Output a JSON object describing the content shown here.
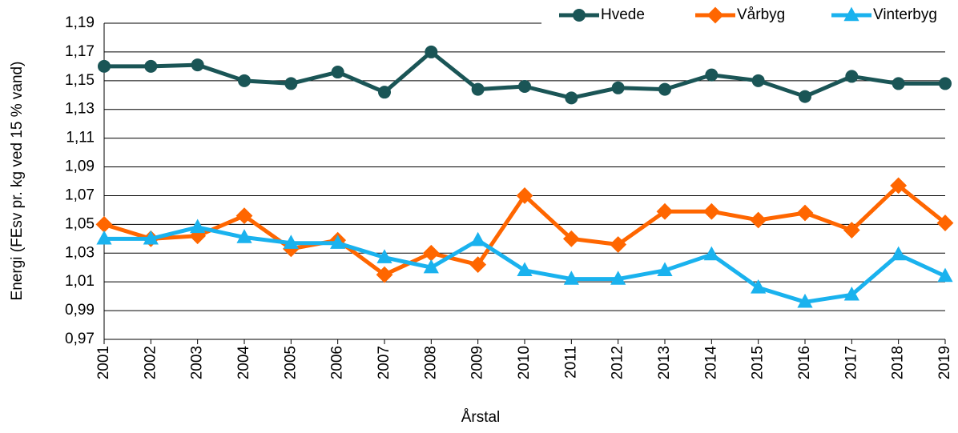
{
  "chart_data": {
    "type": "line",
    "y_label": "Energi (FEsv pr. kg ved 15 % vand)",
    "x_label": "Årstal",
    "categories": [
      "2001",
      "2002",
      "2003",
      "2004",
      "2005",
      "2006",
      "2007",
      "2008",
      "2009",
      "2010",
      "2011",
      "2012",
      "2013",
      "2014",
      "2015",
      "2016",
      "2017",
      "2018",
      "2019"
    ],
    "series": [
      {
        "name": "Hvede",
        "color": "#1a5556",
        "marker": "circle",
        "values": [
          1.16,
          1.16,
          1.161,
          1.15,
          1.148,
          1.156,
          1.142,
          1.17,
          1.144,
          1.146,
          1.138,
          1.145,
          1.144,
          1.154,
          1.15,
          1.139,
          1.153,
          1.148,
          1.148
        ]
      },
      {
        "name": "Vårbyg",
        "color": "#ff6600",
        "marker": "diamond",
        "values": [
          1.05,
          1.04,
          1.042,
          1.056,
          1.033,
          1.039,
          1.015,
          1.03,
          1.022,
          1.07,
          1.04,
          1.036,
          1.059,
          1.059,
          1.053,
          1.058,
          1.046,
          1.077,
          1.051
        ]
      },
      {
        "name": "Vinterbyg",
        "color": "#1ab2ee",
        "marker": "triangle",
        "values": [
          1.04,
          1.04,
          1.048,
          1.041,
          1.037,
          1.037,
          1.027,
          1.02,
          1.039,
          1.018,
          1.012,
          1.012,
          1.018,
          1.029,
          1.006,
          0.996,
          1.001,
          1.029,
          1.014
        ]
      }
    ],
    "ylim": [
      0.97,
      1.19
    ],
    "yticks": [
      {
        "value": 0.97,
        "label": "0,97"
      },
      {
        "value": 0.99,
        "label": "0,99"
      },
      {
        "value": 1.01,
        "label": "1,01"
      },
      {
        "value": 1.03,
        "label": "1,03"
      },
      {
        "value": 1.05,
        "label": "1,05"
      },
      {
        "value": 1.07,
        "label": "1,07"
      },
      {
        "value": 1.09,
        "label": "1,09"
      },
      {
        "value": 1.11,
        "label": "1,11"
      },
      {
        "value": 1.13,
        "label": "1,13"
      },
      {
        "value": 1.15,
        "label": "1,15"
      },
      {
        "value": 1.17,
        "label": "1,17"
      },
      {
        "value": 1.19,
        "label": "1,19"
      }
    ],
    "grid": true,
    "legend": "top-right"
  }
}
